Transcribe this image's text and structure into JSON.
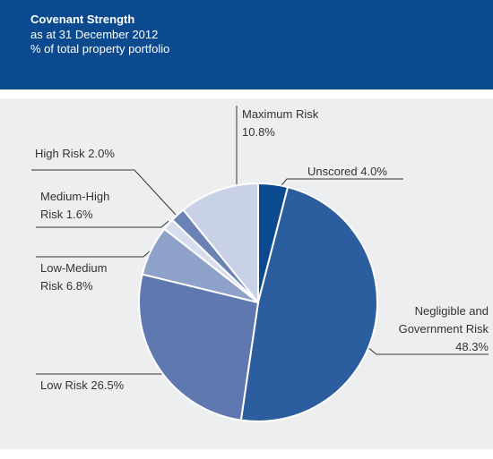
{
  "chart_data": {
    "type": "pie",
    "title": "Covenant Strength",
    "subtitles": [
      "as at 31 December 2012",
      "% of total property portfolio"
    ],
    "categories": [
      "Unscored",
      "Negligible and Government Risk",
      "Low Risk",
      "Low-Medium Risk",
      "Medium-High Risk",
      "High Risk",
      "Maximum Risk"
    ],
    "values": [
      4.0,
      48.3,
      26.5,
      6.8,
      1.6,
      2.0,
      10.8
    ],
    "value_labels": [
      "4.0%",
      "48.3%",
      "26.5%",
      "6.8%",
      "1.6%",
      "2.0%",
      "10.8%"
    ],
    "colors": [
      "#0b4a8e",
      "#2c5d9f",
      "#6078b0",
      "#8ea1c9",
      "#d7ddec",
      "#6c82b7",
      "#c9d1e7"
    ]
  }
}
